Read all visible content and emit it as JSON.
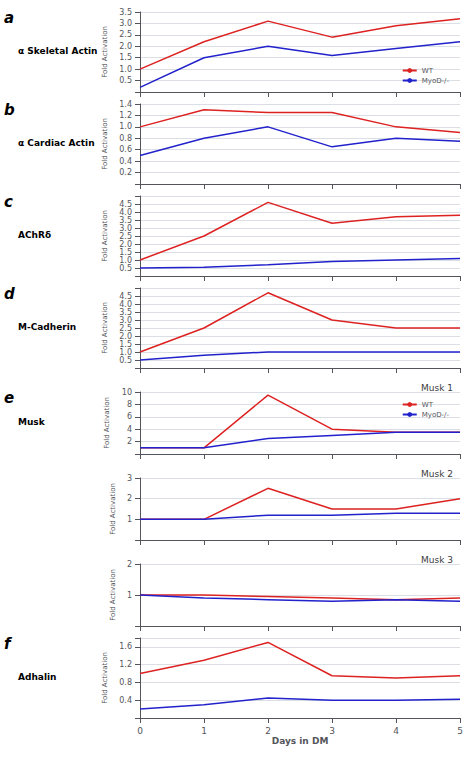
{
  "chart_data": [
    {
      "type": "line",
      "annotations": [
        "a",
        "α Skeletal Actin"
      ],
      "x": [
        0,
        1,
        2,
        3,
        4,
        5
      ],
      "xlim": [
        0,
        5
      ],
      "xticks": [
        0,
        1,
        2,
        3,
        4,
        5
      ],
      "ylim": [
        0,
        3.5
      ],
      "yticks": [
        0.5,
        {
          "value": 1.0,
          "label": "1.0"
        },
        1.5,
        {
          "value": 2.0,
          "label": "2.0"
        },
        2.5,
        {
          "value": 3.0,
          "label": "3.0"
        },
        3.5
      ],
      "ylabel": "Fold Activation",
      "grid": true,
      "legend": "lower right",
      "tick_labels": "y",
      "series": [
        {
          "name": "WT",
          "color": "#dd2222",
          "values": [
            1.0,
            2.2,
            3.1,
            2.4,
            2.9,
            3.2
          ]
        },
        {
          "name": "MyoD-/-",
          "color": "#2222cc",
          "values": [
            0.2,
            1.5,
            2.0,
            1.6,
            1.9,
            2.2
          ]
        }
      ]
    },
    {
      "type": "line",
      "annotations": [
        "b",
        "α Cardiac Actin"
      ],
      "x": [
        0,
        1,
        2,
        3,
        4,
        5
      ],
      "xlim": [
        0,
        5
      ],
      "xticks": [
        0,
        1,
        2,
        3,
        4,
        5
      ],
      "ylim": [
        0,
        1.4
      ],
      "yticks": [
        0.2,
        0.4,
        0.6,
        0.8,
        {
          "value": 1.0,
          "label": "1.0"
        },
        1.2,
        1.4
      ],
      "ylabel": "Fold Activation",
      "grid": true,
      "tick_labels": "y",
      "series": [
        {
          "name": "WT",
          "color": "#dd2222",
          "values": [
            1.0,
            1.3,
            1.25,
            1.25,
            1.0,
            0.9
          ]
        },
        {
          "name": "MyoD-/-",
          "color": "#2222cc",
          "values": [
            0.5,
            0.8,
            1.0,
            0.65,
            0.8,
            0.75
          ]
        }
      ]
    },
    {
      "type": "line",
      "annotations": [
        "c",
        "AChRδ"
      ],
      "x": [
        0,
        1,
        2,
        3,
        4,
        5
      ],
      "xlim": [
        0,
        5
      ],
      "xticks": [
        0,
        1,
        2,
        3,
        4,
        5
      ],
      "ylim": [
        0,
        5.0
      ],
      "yticks": [
        0.5,
        {
          "value": 1.0,
          "label": "1.0"
        },
        1.5,
        {
          "value": 2.0,
          "label": "2.0"
        },
        2.5,
        {
          "value": 3.0,
          "label": "3.0"
        },
        3.5,
        {
          "value": 4.0,
          "label": "4.0"
        },
        4.5
      ],
      "ylabel": "Fold Activation",
      "grid": true,
      "tick_labels": "y",
      "series": [
        {
          "name": "WT",
          "color": "#dd2222",
          "values": [
            1.0,
            2.5,
            4.6,
            3.3,
            3.7,
            3.8
          ]
        },
        {
          "name": "MyoD-/-",
          "color": "#2222cc",
          "values": [
            0.5,
            0.55,
            0.7,
            0.9,
            1.0,
            1.1
          ]
        }
      ]
    },
    {
      "type": "line",
      "annotations": [
        "d",
        "M-Cadherin"
      ],
      "x": [
        0,
        1,
        2,
        3,
        4,
        5
      ],
      "xlim": [
        0,
        5
      ],
      "xticks": [
        0,
        1,
        2,
        3,
        4,
        5
      ],
      "ylim": [
        0,
        5.0
      ],
      "yticks": [
        0.5,
        {
          "value": 1.0,
          "label": "1.0"
        },
        1.5,
        {
          "value": 2.0,
          "label": "2.0"
        },
        2.5,
        {
          "value": 3.0,
          "label": "3.0"
        },
        3.5,
        {
          "value": 4.0,
          "label": "4.0"
        },
        4.5
      ],
      "ylabel": "Fold Activation",
      "grid": true,
      "tick_labels": "y",
      "series": [
        {
          "name": "WT",
          "color": "#dd2222",
          "values": [
            1.0,
            2.5,
            4.7,
            3.0,
            2.5,
            2.5
          ]
        },
        {
          "name": "MyoD-/-",
          "color": "#2222cc",
          "values": [
            0.5,
            0.8,
            1.0,
            1.0,
            1.0,
            1.0
          ]
        }
      ]
    },
    {
      "type": "line",
      "title": "Musk 1",
      "annotations": [
        "e",
        "Musk"
      ],
      "x": [
        0,
        1,
        2,
        3,
        4,
        5
      ],
      "xlim": [
        0,
        5
      ],
      "xticks": [
        0,
        1,
        2,
        3,
        4,
        5
      ],
      "ylim": [
        0,
        10
      ],
      "yticks": [
        2,
        4,
        6,
        8,
        10
      ],
      "ylabel": "Fold Activation",
      "grid": true,
      "legend": "upper right",
      "tick_labels": "y",
      "series": [
        {
          "name": "WT",
          "color": "#dd2222",
          "values": [
            1.0,
            1.0,
            9.5,
            4.0,
            3.5,
            3.5
          ]
        },
        {
          "name": "MyoD-/-",
          "color": "#2222cc",
          "values": [
            1.0,
            1.0,
            2.5,
            3.0,
            3.5,
            3.5
          ]
        }
      ]
    },
    {
      "type": "line",
      "title": "Musk 2",
      "x": [
        0,
        1,
        2,
        3,
        4,
        5
      ],
      "xlim": [
        0,
        5
      ],
      "xticks": [
        0,
        1,
        2,
        3,
        4,
        5
      ],
      "ylim": [
        0,
        3
      ],
      "yticks": [
        1,
        2,
        3
      ],
      "ylabel": "Fold Activation",
      "grid": true,
      "tick_labels": "y",
      "series": [
        {
          "name": "WT",
          "color": "#dd2222",
          "values": [
            1.0,
            1.0,
            2.5,
            1.5,
            1.5,
            2.0
          ]
        },
        {
          "name": "MyoD-/-",
          "color": "#2222cc",
          "values": [
            1.0,
            1.0,
            1.2,
            1.2,
            1.3,
            1.3
          ]
        }
      ]
    },
    {
      "type": "line",
      "title": "Musk 3",
      "x": [
        0,
        1,
        2,
        3,
        4,
        5
      ],
      "xlim": [
        0,
        5
      ],
      "xticks": [
        0,
        1,
        2,
        3,
        4,
        5
      ],
      "ylim": [
        0,
        2
      ],
      "yticks": [
        1,
        2
      ],
      "ylabel": "Fold Activation",
      "grid": true,
      "tick_labels": "y",
      "series": [
        {
          "name": "WT",
          "color": "#dd2222",
          "values": [
            1.0,
            1.0,
            0.95,
            0.9,
            0.85,
            0.9
          ]
        },
        {
          "name": "MyoD-/-",
          "color": "#2222cc",
          "values": [
            1.0,
            0.9,
            0.85,
            0.8,
            0.85,
            0.8
          ]
        }
      ]
    },
    {
      "type": "line",
      "annotations": [
        "f",
        "Adhalin"
      ],
      "x": [
        0,
        1,
        2,
        3,
        4,
        5
      ],
      "xlim": [
        0,
        5
      ],
      "xticks": [
        0,
        1,
        2,
        3,
        4,
        5
      ],
      "ylim": [
        0,
        1.8
      ],
      "yticks": [
        0.4,
        0.8,
        1.2,
        1.6
      ],
      "xlabel": "Days in DM",
      "ylabel": "Fold Activation",
      "grid": true,
      "series": [
        {
          "name": "WT",
          "color": "#dd2222",
          "values": [
            1.0,
            1.3,
            1.7,
            0.95,
            0.9,
            0.95
          ]
        },
        {
          "name": "MyoD-/-",
          "color": "#2222cc",
          "values": [
            0.2,
            0.3,
            0.45,
            0.4,
            0.4,
            0.42
          ]
        }
      ]
    }
  ]
}
